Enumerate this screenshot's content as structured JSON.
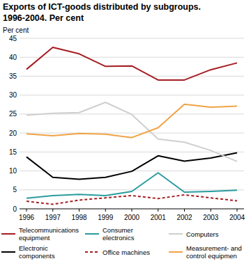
{
  "chart_data": {
    "type": "line",
    "title": "Exports of ICT-goods distributed by subgroups.",
    "subtitle": "1996-2004. Per cent",
    "y_label": "Per cent",
    "categories": [
      "1996",
      "1997",
      "1998",
      "1999",
      "2000",
      "2001",
      "2002",
      "2003",
      "2004"
    ],
    "series": [
      {
        "name": "Telecommunications equipment",
        "color": "#a51d23",
        "line_style": "solid",
        "values": [
          36.8,
          42.6,
          40.9,
          37.6,
          37.7,
          34.0,
          34.0,
          36.7,
          38.5
        ]
      },
      {
        "name": "Electronic components",
        "color": "#000000",
        "line_style": "solid",
        "values": [
          13.7,
          8.3,
          7.8,
          8.3,
          9.9,
          14.0,
          12.6,
          13.4,
          14.8
        ]
      },
      {
        "name": "Consumer electronics",
        "color": "#2a9b9f",
        "line_style": "solid",
        "values": [
          2.8,
          3.5,
          3.8,
          3.5,
          4.6,
          9.5,
          4.4,
          4.6,
          4.9
        ]
      },
      {
        "name": "Office machines",
        "color": "#a51d23",
        "line_style": "dashed",
        "values": [
          2.0,
          1.2,
          2.3,
          2.9,
          3.5,
          2.7,
          3.7,
          2.9,
          2.1
        ]
      },
      {
        "name": "Computers",
        "color": "#cfcfcf",
        "line_style": "solid",
        "values": [
          24.7,
          25.2,
          25.4,
          28.1,
          24.9,
          18.4,
          17.6,
          15.4,
          12.5
        ]
      },
      {
        "name": "Measurement- and control equipmen",
        "color": "#f0a345",
        "line_style": "solid",
        "values": [
          19.8,
          19.3,
          19.9,
          19.7,
          18.8,
          21.4,
          27.6,
          26.8,
          27.1
        ]
      }
    ],
    "ylim": [
      0,
      45
    ],
    "yticks": [
      0,
      5,
      10,
      15,
      20,
      25,
      30,
      35,
      40,
      45
    ],
    "grid": true,
    "legend": "bottom"
  }
}
